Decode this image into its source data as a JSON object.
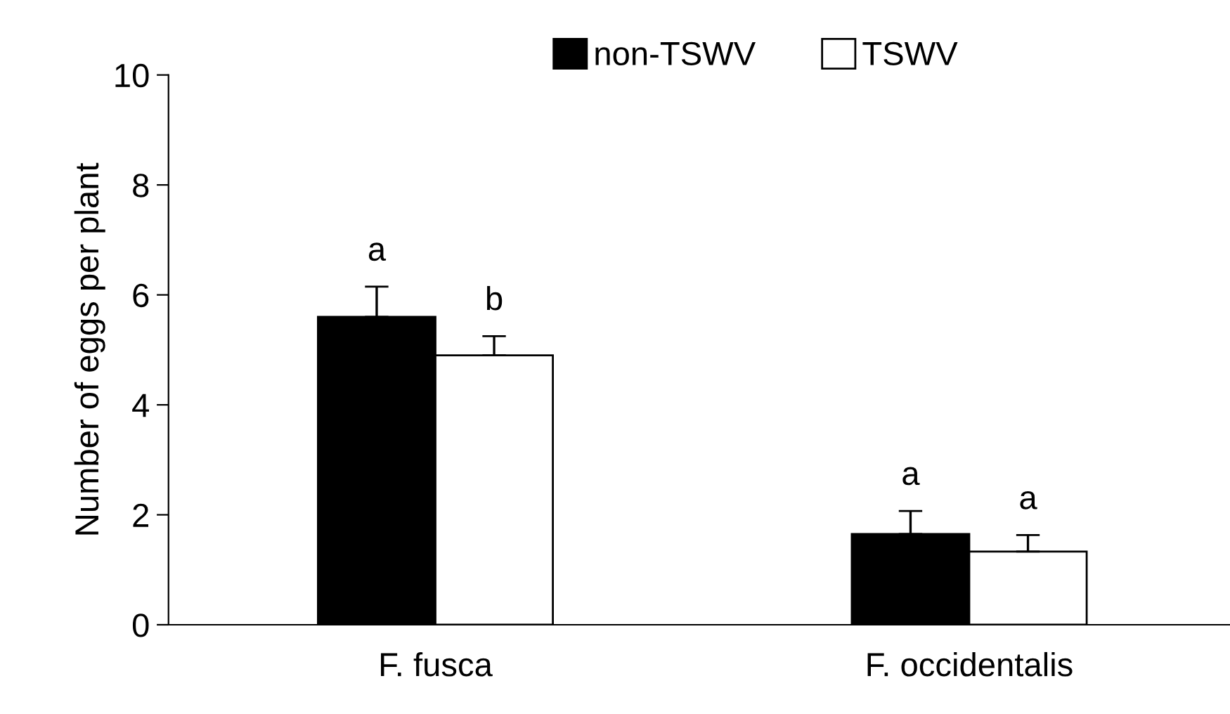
{
  "chart_data": {
    "type": "bar",
    "ylabel": "Number of eggs per plant",
    "categories": [
      "F. fusca",
      "F. occidentalis"
    ],
    "series": [
      {
        "name": "non-TSWV",
        "color": "#000000",
        "values": [
          5.6,
          1.65
        ],
        "errors": [
          0.55,
          0.42
        ],
        "value_labels": [
          "a",
          "a"
        ]
      },
      {
        "name": "TSWV",
        "color": "#ffffff",
        "values": [
          4.9,
          1.33
        ],
        "errors": [
          0.35,
          0.3
        ],
        "value_labels": [
          "b",
          "a"
        ]
      }
    ],
    "ylim": [
      0,
      10
    ],
    "yticks": [
      0,
      2,
      4,
      6,
      8,
      10
    ],
    "grid": false,
    "legend": "top"
  }
}
